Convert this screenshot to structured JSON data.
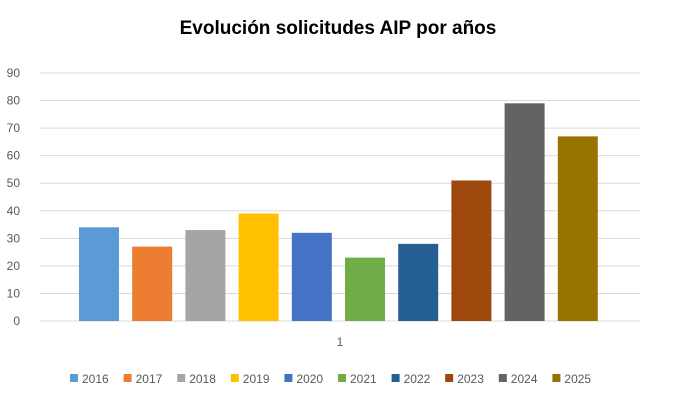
{
  "chart_data": {
    "type": "bar",
    "title": "Evolución solicitudes AIP por años",
    "xlabel": "",
    "ylabel": "",
    "categories": [
      "1"
    ],
    "series": [
      {
        "name": "2016",
        "values": [
          34
        ],
        "color": "#5B9BD5"
      },
      {
        "name": "2017",
        "values": [
          27
        ],
        "color": "#ED7D31"
      },
      {
        "name": "2018",
        "values": [
          33
        ],
        "color": "#A5A5A5"
      },
      {
        "name": "2019",
        "values": [
          39
        ],
        "color": "#FFC000"
      },
      {
        "name": "2020",
        "values": [
          32
        ],
        "color": "#4472C4"
      },
      {
        "name": "2021",
        "values": [
          23
        ],
        "color": "#70AD47"
      },
      {
        "name": "2022",
        "values": [
          28
        ],
        "color": "#255E91"
      },
      {
        "name": "2023",
        "values": [
          51
        ],
        "color": "#9E480E"
      },
      {
        "name": "2024",
        "values": [
          79
        ],
        "color": "#636363"
      },
      {
        "name": "2025",
        "values": [
          67
        ],
        "color": "#997300"
      }
    ],
    "ylim": [
      0,
      90
    ],
    "yticks": [
      0,
      10,
      20,
      30,
      40,
      50,
      60,
      70,
      80,
      90
    ],
    "grid": true,
    "legend": "bottom"
  }
}
